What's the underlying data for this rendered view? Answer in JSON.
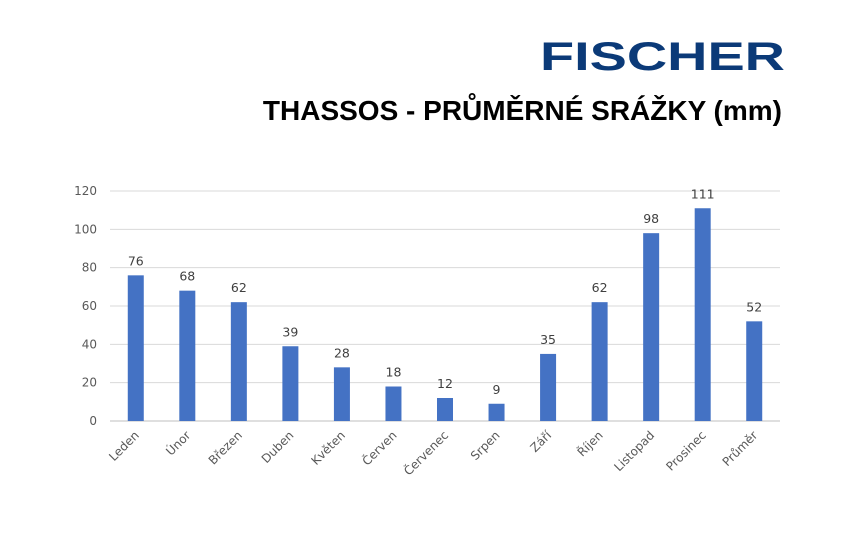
{
  "brand": {
    "logo_text": "FISCHER",
    "logo_color": "#0b3a78"
  },
  "chart_data": {
    "type": "bar",
    "title": "THASSOS - PRŮMĚRNÉ SRÁŽKY (mm)",
    "categories": [
      "Leden",
      "Únor",
      "Březen",
      "Duben",
      "Květen",
      "Červen",
      "Červenec",
      "Srpen",
      "Září",
      "Říjen",
      "Listopad",
      "Prosinec",
      "Průměr"
    ],
    "values": [
      76,
      68,
      62,
      39,
      28,
      18,
      12,
      9,
      35,
      62,
      98,
      111,
      52
    ],
    "ylim": [
      0,
      120
    ],
    "yticks": [
      0,
      20,
      40,
      60,
      80,
      100,
      120
    ],
    "grid": true,
    "data_labels": true,
    "bar_color": "#4472c4"
  }
}
